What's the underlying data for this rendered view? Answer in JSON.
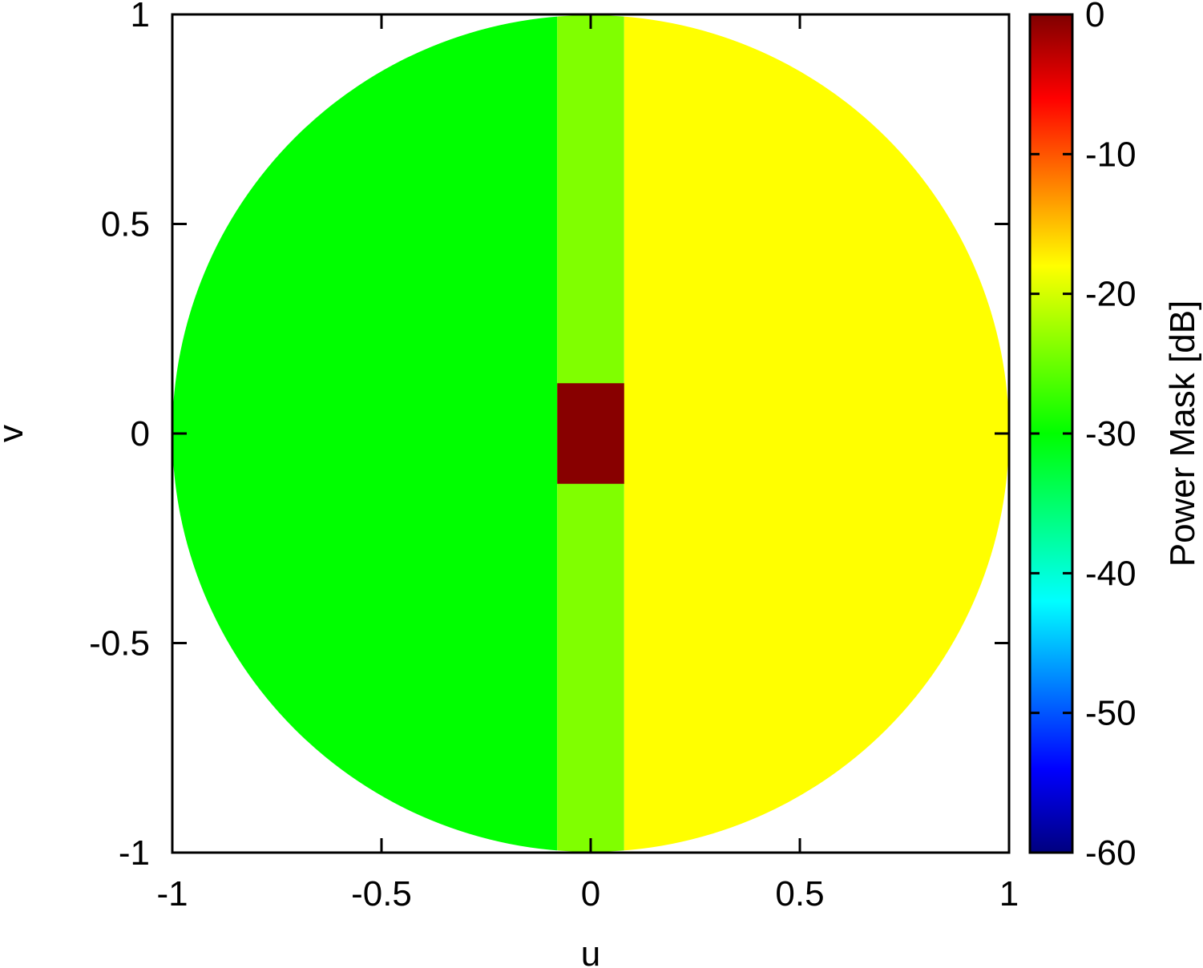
{
  "chart_data": {
    "type": "heatmap",
    "title": "",
    "xlabel": "u",
    "ylabel": "v",
    "xlim": [
      -1,
      1
    ],
    "ylim": [
      -1,
      1
    ],
    "xticks": [
      "-1",
      "-0.5",
      "0",
      "0.5",
      "1"
    ],
    "yticks": [
      "-1",
      "-0.5",
      "0",
      "0.5",
      "1"
    ],
    "domain_shape": "unit circle u^2+v^2<=1",
    "regions": [
      {
        "label": "left",
        "u_range": [
          -1,
          -0.08
        ],
        "v_range": [
          -1,
          1
        ],
        "value_db": -29
      },
      {
        "label": "center-strip",
        "u_range": [
          -0.08,
          0.08
        ],
        "v_range": [
          -1,
          1
        ],
        "value_db": -25
      },
      {
        "label": "right",
        "u_range": [
          0.08,
          1
        ],
        "v_range": [
          -1,
          1
        ],
        "value_db": -21
      },
      {
        "label": "main-beam",
        "u_range": [
          -0.08,
          0.08
        ],
        "v_range": [
          -0.12,
          0.12
        ],
        "value_db": 0
      }
    ],
    "colorbar": {
      "label": "Power Mask [dB]",
      "range": [
        -60,
        0
      ],
      "ticks": [
        "0",
        "-10",
        "-20",
        "-30",
        "-40",
        "-50",
        "-60"
      ],
      "colors": [
        "#00007f",
        "#0000ff",
        "#007fff",
        "#00ffff",
        "#00ff7f",
        "#00ff00",
        "#7fff00",
        "#ffff00",
        "#ff7f00",
        "#ff0000",
        "#7f0000"
      ]
    },
    "grid": false
  },
  "colors": {
    "left": "#00ff00",
    "center_strip": "#80ff00",
    "right": "#ffff00",
    "main_beam": "#880000"
  }
}
